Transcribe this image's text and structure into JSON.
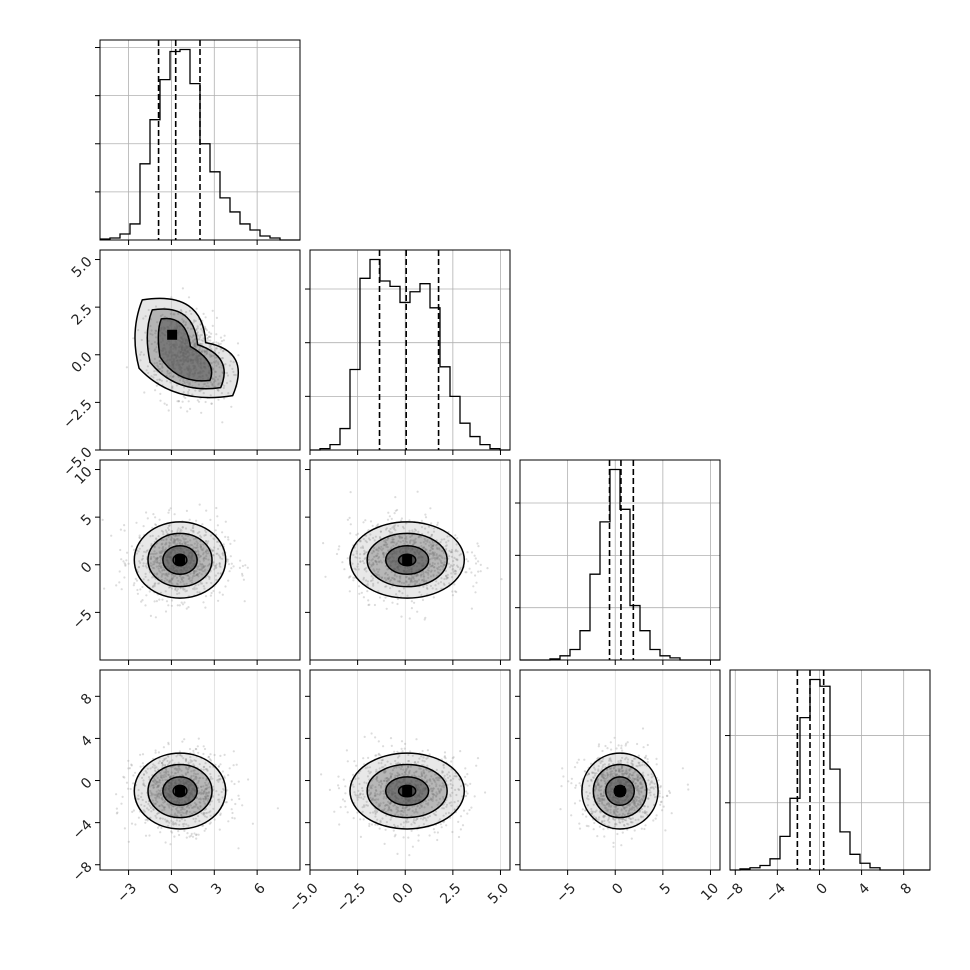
{
  "chart_data": {
    "type": "corner",
    "title": "",
    "quantile_lines": "dashed",
    "grid": true,
    "colors": {
      "line": "#000000",
      "grid": "#b0b0b0",
      "points": "#9a9a9a",
      "density_dark": "#000000"
    },
    "parameters": [
      {
        "range": [
          -5,
          9
        ],
        "ticks": [
          -3,
          0,
          3,
          6
        ],
        "tick_labels": [
          "−3",
          "0",
          "3",
          "6"
        ]
      },
      {
        "range": [
          -5,
          5.5
        ],
        "ticks": [
          -5.0,
          -2.5,
          0.0,
          2.5,
          5.0
        ],
        "tick_labels": [
          "−5.0",
          "−2.5",
          "0.0",
          "2.5",
          "5.0"
        ]
      },
      {
        "range": [
          -10,
          11
        ],
        "ticks": [
          -5,
          0,
          5,
          10
        ],
        "tick_labels": [
          "−5",
          "0",
          "5",
          "10"
        ]
      },
      {
        "range": [
          -8.5,
          10.5
        ],
        "ticks": [
          -8,
          -4,
          0,
          4,
          8
        ],
        "tick_labels": [
          "−8",
          "−4",
          "0",
          "4",
          "8"
        ]
      }
    ],
    "histograms": [
      {
        "param": 0,
        "bin_edges": [
          -5,
          -4.3,
          -3.6,
          -2.9,
          -2.2,
          -1.5,
          -0.8,
          -0.1,
          0.6,
          1.3,
          2.0,
          2.7,
          3.4,
          4.1,
          4.8,
          5.5,
          6.2,
          6.9,
          7.6,
          8.3,
          9.0
        ],
        "counts": [
          0.5,
          1,
          3,
          8,
          38,
          60,
          80,
          94,
          95,
          78,
          48,
          34,
          21,
          14,
          8,
          5,
          2,
          1,
          0,
          0
        ],
        "quantiles": [
          -0.9,
          0.3,
          2.0
        ],
        "yticks": [
          24,
          48,
          72,
          96
        ]
      },
      {
        "param": 1,
        "bin_edges": [
          -5,
          -4.475,
          -3.95,
          -3.425,
          -2.9,
          -2.375,
          -1.85,
          -1.325,
          -0.8,
          -0.275,
          0.25,
          0.775,
          1.3,
          1.825,
          2.35,
          2.875,
          3.4,
          3.925,
          4.45,
          4.975,
          5.5
        ],
        "counts": [
          0,
          0.5,
          2,
          8,
          30,
          64,
          71,
          63,
          61,
          55,
          59,
          62,
          53,
          31,
          20,
          10,
          5,
          2,
          0.5,
          0
        ],
        "quantiles": [
          -1.35,
          0.05,
          1.75
        ],
        "yticks": [
          20,
          40,
          60
        ]
      },
      {
        "param": 2,
        "bin_edges": [
          -10,
          -8.95,
          -7.9,
          -6.85,
          -5.8,
          -4.75,
          -3.7,
          -2.65,
          -1.6,
          -0.55,
          0.5,
          1.55,
          2.6,
          3.65,
          4.7,
          5.75,
          6.8,
          7.85,
          8.9,
          9.95,
          11.0
        ],
        "counts": [
          0,
          0,
          0,
          0.5,
          2,
          5,
          14,
          41,
          66,
          91,
          72,
          26,
          14,
          5,
          2,
          1,
          0,
          0,
          0,
          0
        ],
        "quantiles": [
          -0.6,
          0.6,
          1.9
        ],
        "yticks": [
          25,
          50,
          75
        ]
      },
      {
        "param": 3,
        "bin_edges": [
          -8.5,
          -7.55,
          -6.6,
          -5.65,
          -4.7,
          -3.75,
          -2.8,
          -1.85,
          -0.9,
          0.05,
          1.0,
          1.95,
          2.9,
          3.85,
          4.8,
          5.75,
          6.7,
          7.85,
          8.9,
          9.95,
          10.5
        ],
        "counts": [
          0,
          0.5,
          1,
          2,
          5,
          15,
          32,
          68,
          85,
          82,
          45,
          17,
          7,
          3,
          1,
          0,
          0,
          0,
          0,
          0
        ],
        "quantiles": [
          -2.1,
          -0.9,
          0.4
        ],
        "yticks": [
          30,
          60
        ]
      }
    ],
    "scatter_panels": [
      {
        "x_param": 0,
        "y_param": 1,
        "density": "bimodal-ridge"
      },
      {
        "x_param": 0,
        "y_param": 2,
        "density": "gaussian"
      },
      {
        "x_param": 1,
        "y_param": 2,
        "density": "gaussian"
      },
      {
        "x_param": 0,
        "y_param": 3,
        "density": "gaussian"
      },
      {
        "x_param": 1,
        "y_param": 3,
        "density": "gaussian"
      },
      {
        "x_param": 2,
        "y_param": 3,
        "density": "gaussian"
      }
    ]
  }
}
